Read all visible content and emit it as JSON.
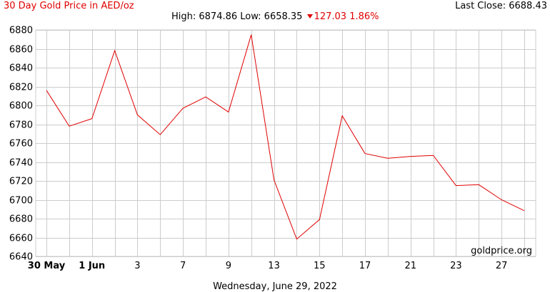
{
  "header": {
    "title": "30 Day Gold Price in AED/oz",
    "last_close": "Last Close: 6688.43",
    "stats_prefix": "High: 6874.86 Low: 6658.35",
    "stats_change": "127.03 1.86%"
  },
  "watermark": "goldprice.org",
  "footer_date": "Wednesday, June 29, 2022",
  "chart_data": {
    "type": "line",
    "title": "30 Day Gold Price in AED/oz",
    "xlabel": "",
    "ylabel": "",
    "ylim": [
      6640,
      6880
    ],
    "y_ticks": [
      6640,
      6660,
      6680,
      6700,
      6720,
      6740,
      6760,
      6780,
      6800,
      6820,
      6840,
      6860,
      6880
    ],
    "x_tick_labels": [
      {
        "index": 0,
        "label": "30 May",
        "bold": true
      },
      {
        "index": 2,
        "label": "1 Jun",
        "bold": true
      },
      {
        "index": 4,
        "label": "3",
        "bold": false
      },
      {
        "index": 6,
        "label": "7",
        "bold": false
      },
      {
        "index": 8,
        "label": "9",
        "bold": false
      },
      {
        "index": 10,
        "label": "13",
        "bold": false
      },
      {
        "index": 12,
        "label": "15",
        "bold": false
      },
      {
        "index": 14,
        "label": "17",
        "bold": false
      },
      {
        "index": 16,
        "label": "21",
        "bold": false
      },
      {
        "index": 18,
        "label": "23",
        "bold": false
      },
      {
        "index": 20,
        "label": "27",
        "bold": false
      }
    ],
    "grid": true,
    "line_color": "#e00000",
    "series": [
      {
        "values": [
          6816,
          6778,
          6786,
          6858,
          6790,
          6769,
          6797,
          6809,
          6793,
          6874.86,
          6721,
          6658.35,
          6679,
          6789,
          6749,
          6744,
          6746,
          6747,
          6715,
          6716,
          6700,
          6688.43
        ]
      }
    ]
  }
}
